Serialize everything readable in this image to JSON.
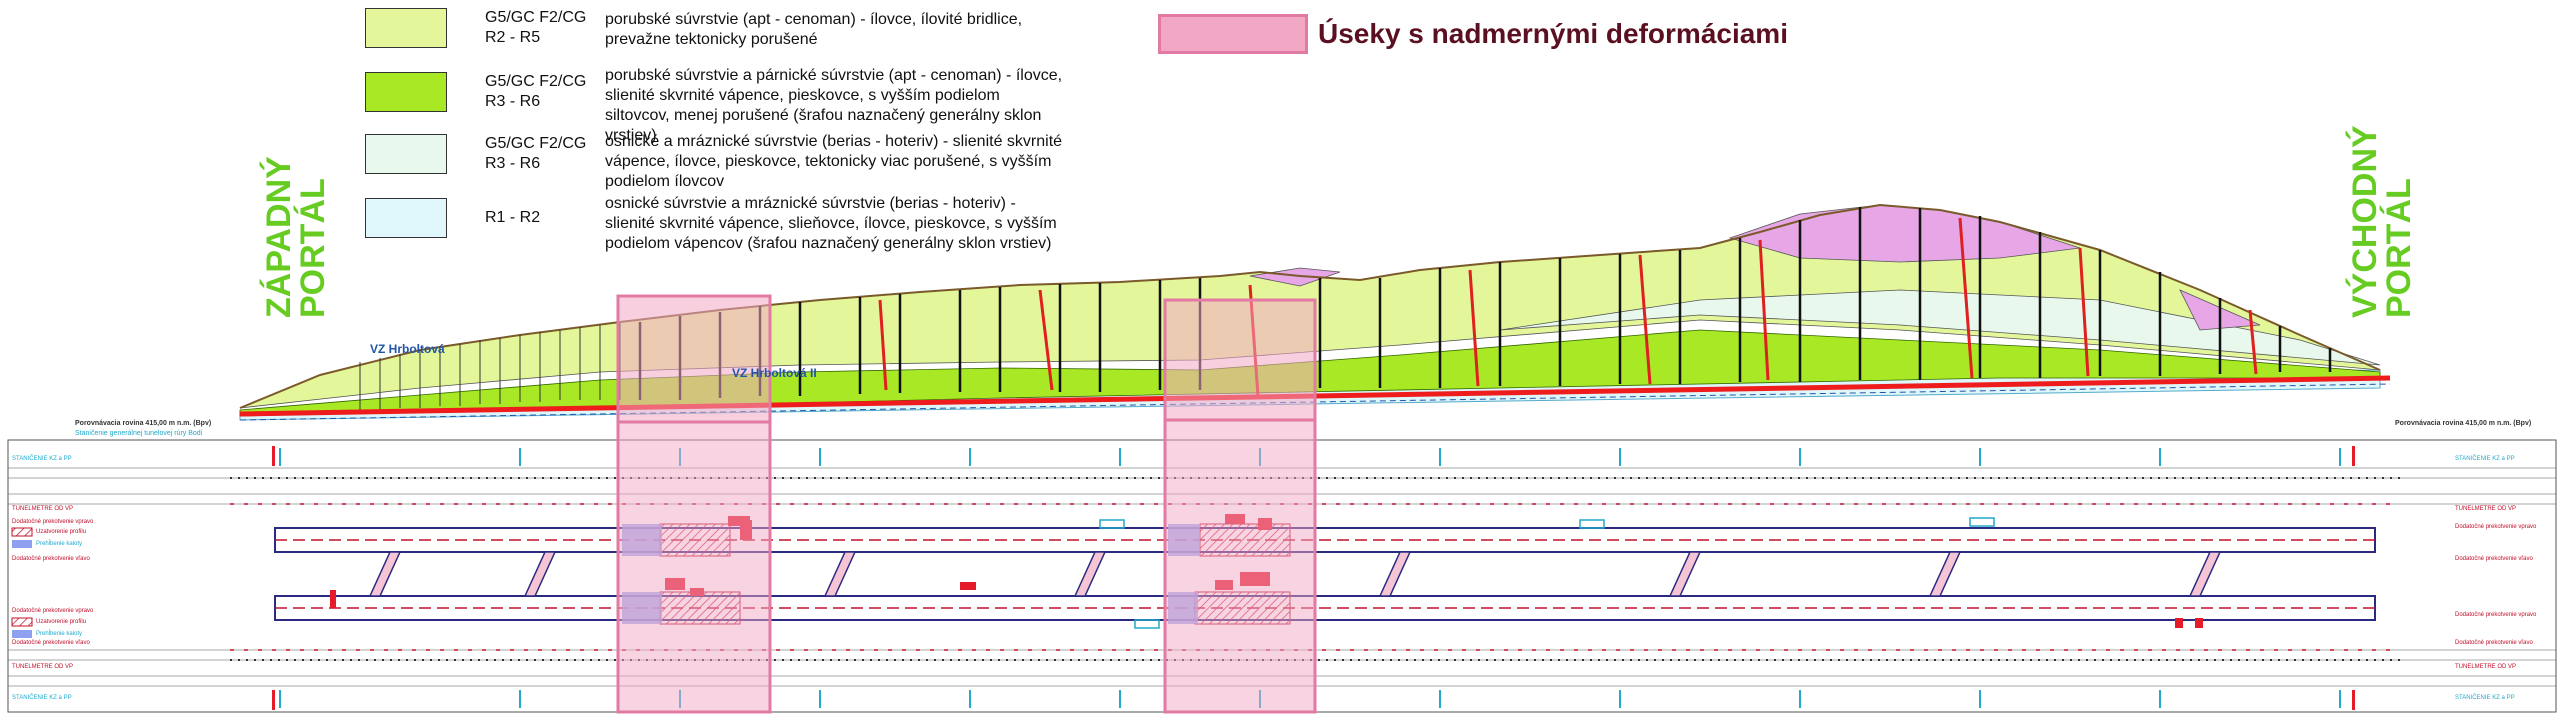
{
  "legend": [
    {
      "code": "G5/GC F2/CG\nR2 - R5",
      "color": "#e3f79a",
      "desc": "porubské súvrstvie (apt - cenoman) - ílovce, ílovité bridlice, prevažne tektonicky porušené"
    },
    {
      "code": "G5/GC F2/CG\nR3 - R6",
      "color": "#a8e824",
      "desc": "porubské súvrstvie a párnické súvrstvie (apt - cenoman) - ílovce, slienité skvrnité vápence, pieskovce, s vyšším podielom siltovcov, menej porušené (šrafou naznačený generálny sklon vrstiev)"
    },
    {
      "code": "G5/GC F2/CG\nR3 - R6",
      "color": "#e8f8ec",
      "desc": "osnické a mráznické súvrstvie (berias - hoteriv) - slienité skvrnité vápence, ílovce, pieskovce, tektonicky viac porušené, s vyšším podielom ílovcov"
    },
    {
      "code": "R1 - R2",
      "color": "#dff6fa",
      "desc": "osnické súvrstvie a mráznické súvrstvie (berias - hoteriv) - slienité skvrnité vápence, slieňovce, ílovce, pieskovce, s vyšším podielom vápencov (šrafou naznačený generálny sklon vrstiev)"
    }
  ],
  "deformation_legend": {
    "label": "Úseky s nadmernými deformáciami",
    "color": "#f2a7c4"
  },
  "portals": {
    "west": "ZÁPADNÝ PORTÁL",
    "east": "VÝCHODNÝ PORTÁL"
  },
  "vz_labels": {
    "vz1": "VZ Hrboltová",
    "vz2": "VZ Hrboltová II"
  },
  "reference_left": {
    "line1": "Porovnávacia rovina 415,00 m n.m. (Bpv)",
    "line2": "Staničenie generálnej tunelovej rúry Bodi"
  },
  "reference_right": {
    "line1": "Porovnávacia rovina 415,00 m n.m. (Bpv)"
  },
  "bands": {
    "stationing_top": "STANIČENIE KZ a PP",
    "tunnel_meters_top": "TUNELMETRE OD VP",
    "extra_primary_lining": "Dodatočné prekotvenie vpravo",
    "closing_profile": "Uzatvorenie profilu",
    "overexcavation": "Prehĺbenie kaloty",
    "extra_primary_lining_left": "Dodatočné prekotvenie vľavo",
    "tunnel_meters_bottom": "TUNELMETRE OD VP",
    "stationing_bottom": "STANIČENIE KZ a PP"
  }
}
